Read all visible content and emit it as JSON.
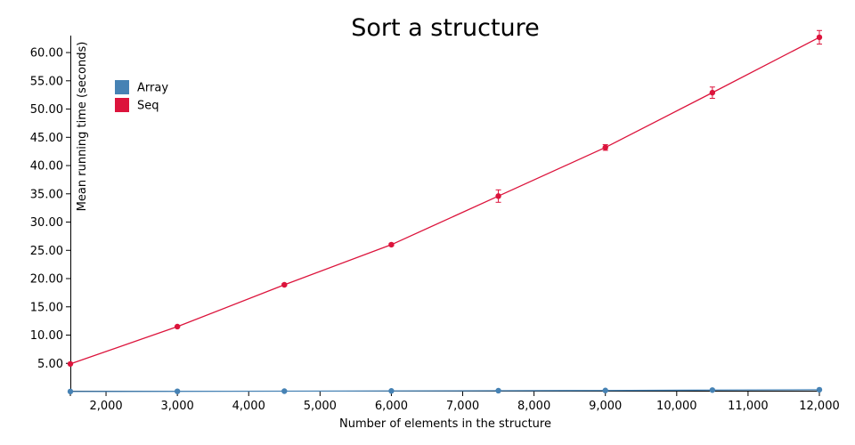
{
  "chart_data": {
    "type": "line",
    "title": "Sort a structure",
    "xlabel": "Number of elements in the structure",
    "ylabel": "Mean running time (seconds)",
    "xlim": [
      1500,
      12000
    ],
    "ylim": [
      0,
      63
    ],
    "x_ticks": [
      2000,
      3000,
      4000,
      5000,
      6000,
      7000,
      8000,
      9000,
      10000,
      11000,
      12000
    ],
    "x_tick_labels": [
      "2,000",
      "3,000",
      "4,000",
      "5,000",
      "6,000",
      "7,000",
      "8,000",
      "9,000",
      "10,000",
      "11,000",
      "12,000"
    ],
    "y_ticks": [
      5,
      10,
      15,
      20,
      25,
      30,
      35,
      40,
      45,
      50,
      55,
      60
    ],
    "y_tick_labels": [
      "5.00",
      "10.00",
      "15.00",
      "20.00",
      "25.00",
      "30.00",
      "35.00",
      "40.00",
      "45.00",
      "50.00",
      "55.00",
      "60.00"
    ],
    "grid": false,
    "legend_position": "top-left",
    "x": [
      1500,
      3000,
      4500,
      6000,
      7500,
      9000,
      10500,
      12000
    ],
    "series": [
      {
        "name": "Array",
        "color": "#4682b4",
        "values": [
          0.02,
          0.05,
          0.08,
          0.12,
          0.16,
          0.2,
          0.27,
          0.33
        ],
        "error": [
          0,
          0,
          0,
          0,
          0,
          0,
          0,
          0
        ]
      },
      {
        "name": "Seq",
        "color": "#dc143c",
        "values": [
          4.9,
          11.5,
          18.9,
          26.0,
          34.6,
          43.2,
          52.9,
          62.7
        ],
        "error": [
          0,
          0.1,
          0.2,
          0.2,
          1.1,
          0.5,
          1.0,
          1.2
        ]
      }
    ]
  }
}
